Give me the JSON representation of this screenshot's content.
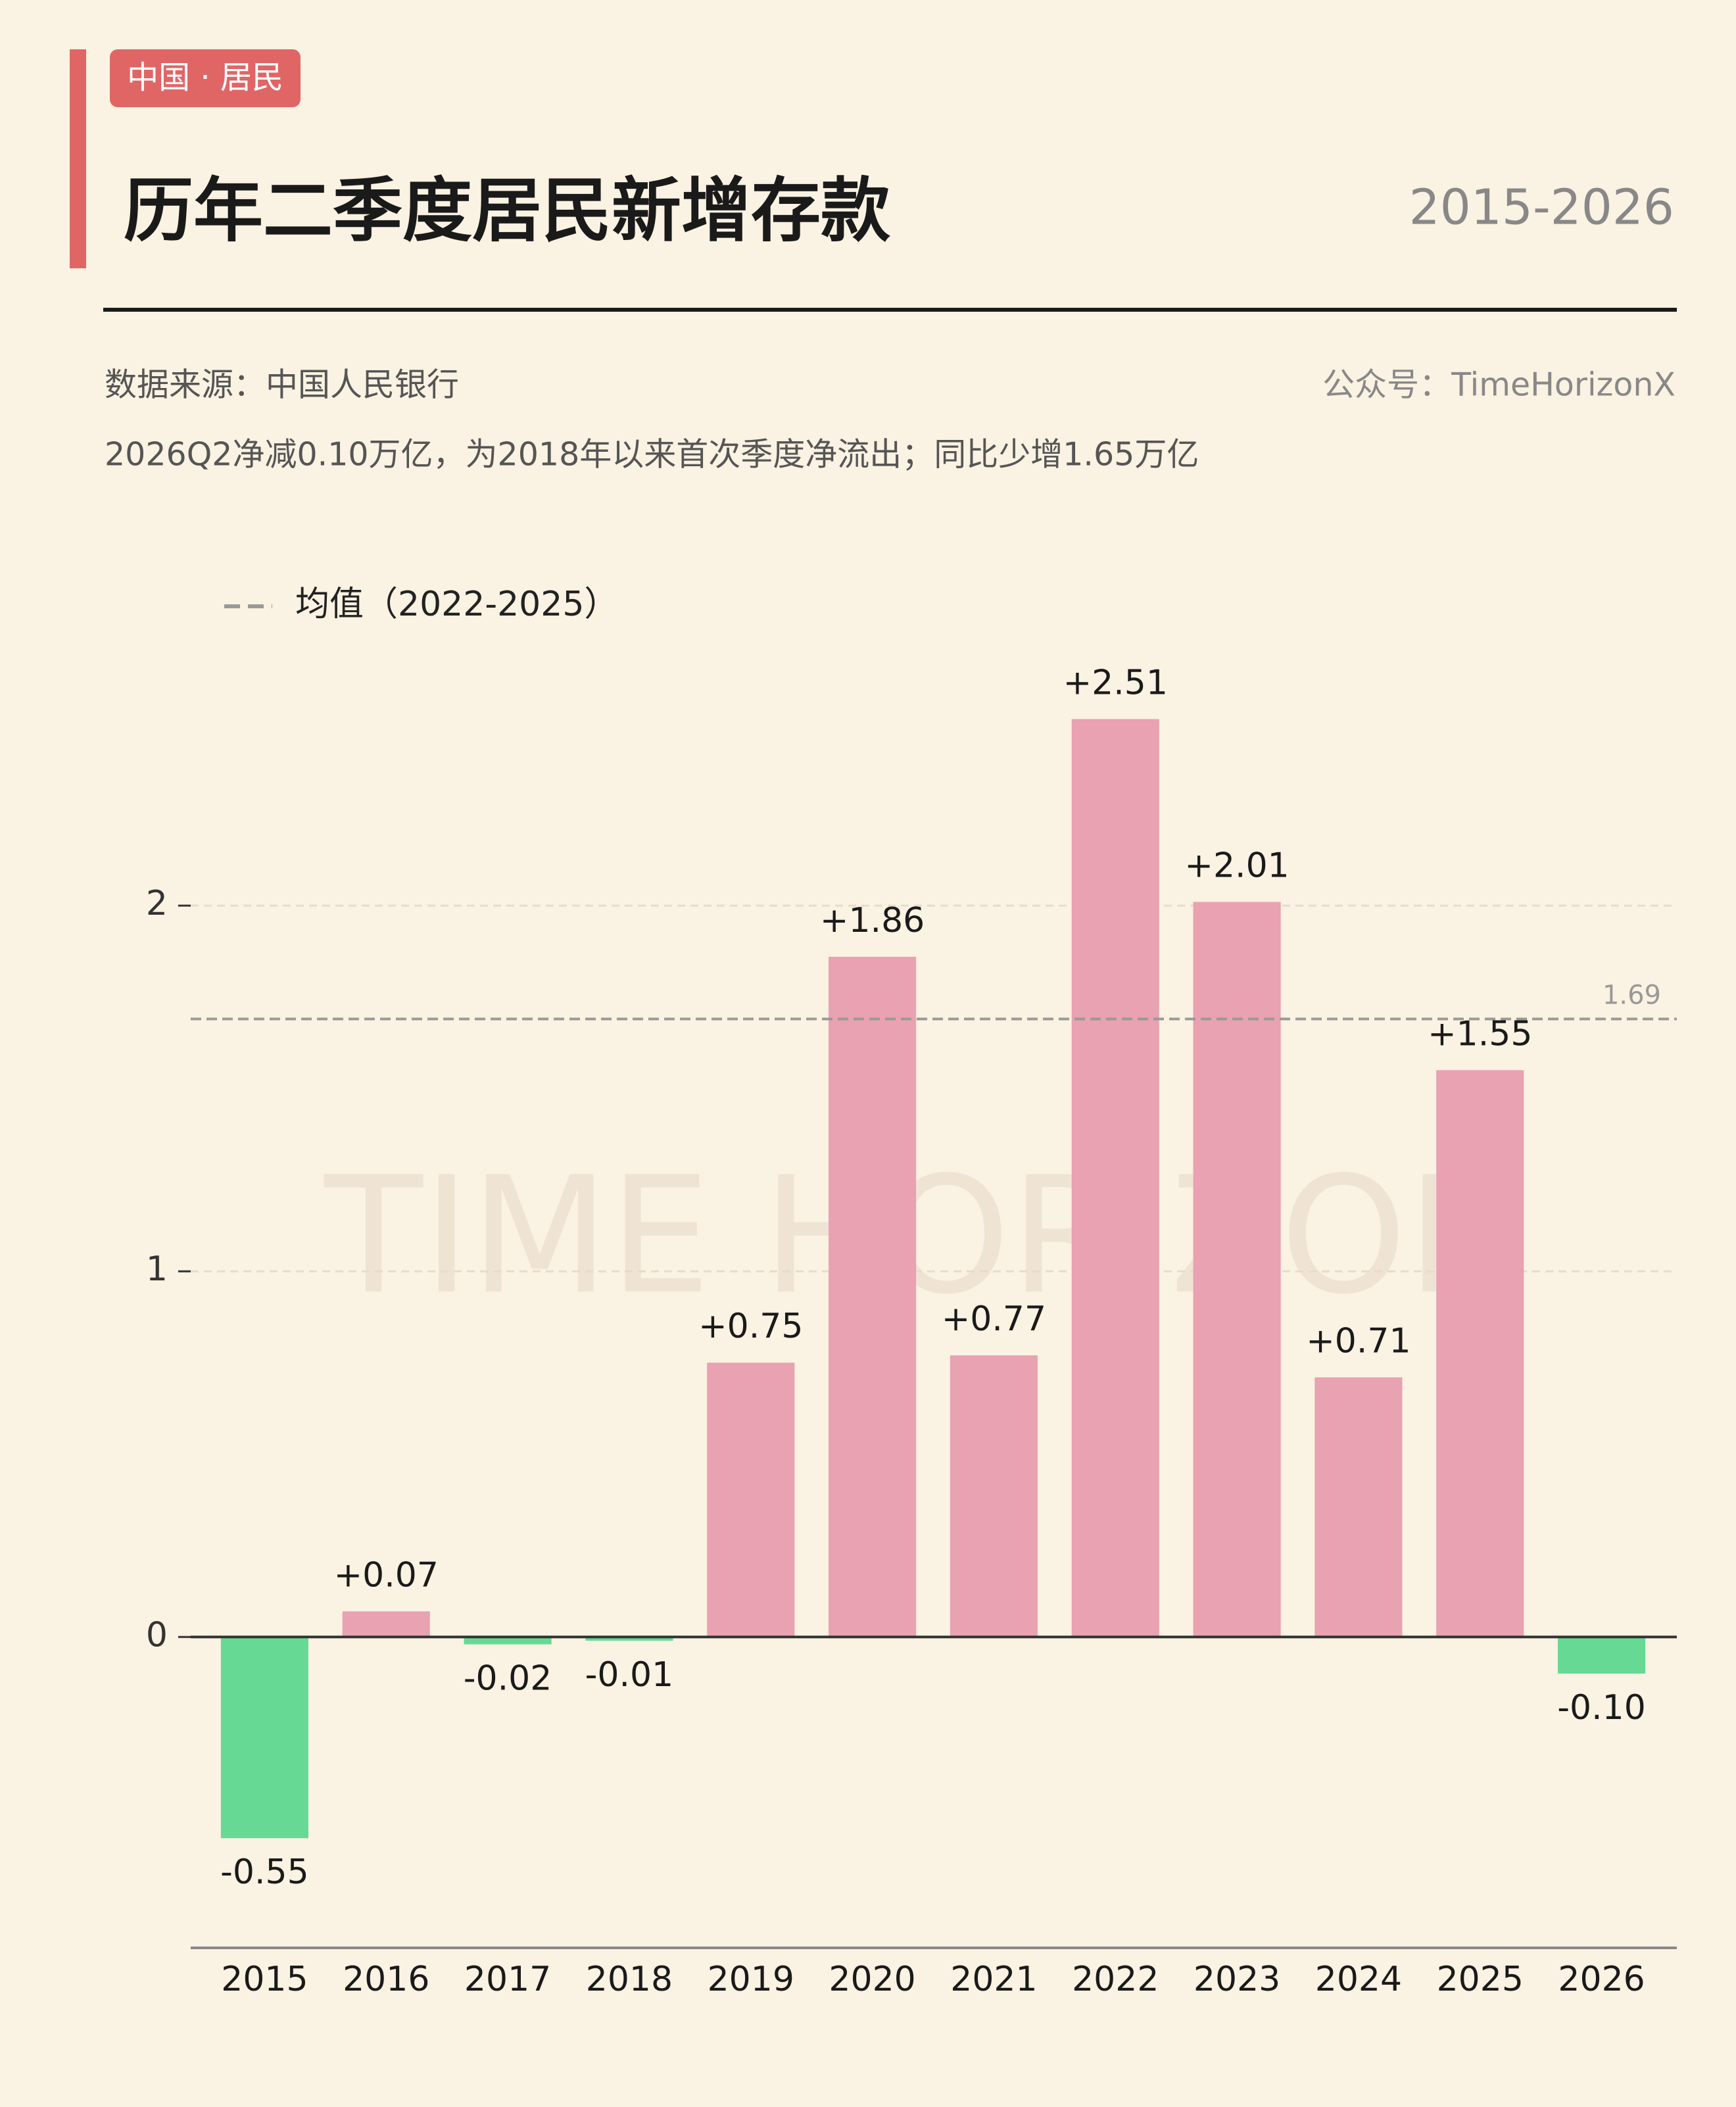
{
  "tag": "中国 · 居民",
  "period": "2015-2026",
  "source": "数据来源：中国人民银行",
  "account": "公众号：TimeHorizonX",
  "watermark": "TIME HORIZON",
  "chart_data": {
    "type": "bar",
    "title": "历年二季度居民新增存款",
    "subtitle": "2026Q2净减0.10万亿，为2018年以来首次季度净流出；同比少增1.65万亿",
    "categories": [
      "2015",
      "2016",
      "2017",
      "2018",
      "2019",
      "2020",
      "2021",
      "2022",
      "2023",
      "2024",
      "2025",
      "2026"
    ],
    "values": [
      -0.55,
      0.07,
      -0.02,
      -0.01,
      0.75,
      1.86,
      0.77,
      2.51,
      2.01,
      0.71,
      1.55,
      -0.1
    ],
    "value_labels": [
      "-0.55",
      "+0.07",
      "-0.02",
      "-0.01",
      "+0.75",
      "+1.86",
      "+0.77",
      "+2.51",
      "+2.01",
      "+0.71",
      "+1.55",
      "-0.10"
    ],
    "positive_color": "#e8a2b1",
    "negative_color": "#66d995",
    "ylim": [
      -0.85,
      2.75
    ],
    "yticks": [
      0,
      1,
      2
    ],
    "grid": true,
    "mean_line": {
      "label": "均值（2022-2025）",
      "value": 1.69
    }
  }
}
